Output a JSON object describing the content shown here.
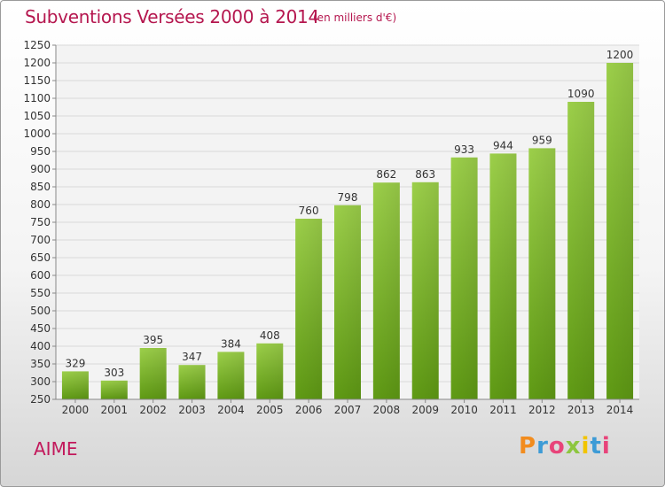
{
  "header": {
    "title": "Subventions Versées 2000 à 2014",
    "subtitle": "(en milliers d'€)"
  },
  "footer": {
    "commune": "AIME",
    "logo_text": "Proxiti"
  },
  "colors": {
    "title": "#b5174f",
    "bar_light": "#9ccf4a",
    "bar_dark": "#5f9a14",
    "grid": "#d8d8d8"
  },
  "chart_data": {
    "type": "bar",
    "categories": [
      "2000",
      "2001",
      "2002",
      "2003",
      "2004",
      "2005",
      "2006",
      "2007",
      "2008",
      "2009",
      "2010",
      "2011",
      "2012",
      "2013",
      "2014"
    ],
    "values": [
      329,
      303,
      395,
      347,
      384,
      408,
      760,
      798,
      862,
      863,
      933,
      944,
      959,
      1090,
      1200
    ],
    "ylim": [
      250,
      1250
    ],
    "yticks": [
      250,
      300,
      350,
      400,
      450,
      500,
      550,
      600,
      650,
      700,
      750,
      800,
      850,
      900,
      950,
      1000,
      1050,
      1100,
      1150,
      1200,
      1250
    ],
    "grid": true,
    "data_labels": true
  }
}
